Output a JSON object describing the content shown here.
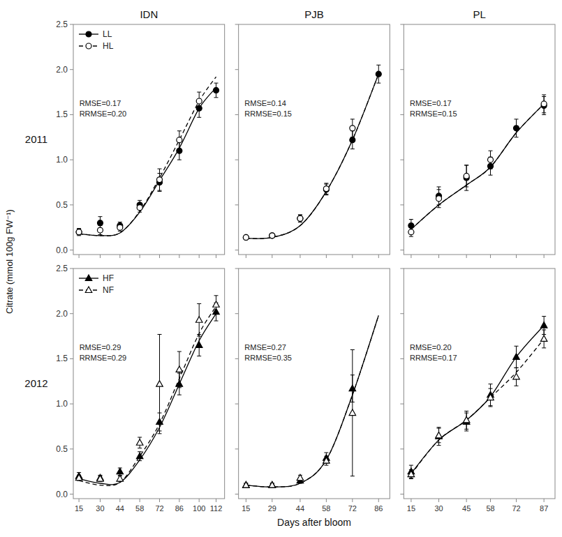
{
  "chart_data": [
    {
      "type": "line",
      "title": "IDN",
      "row_label": "2011",
      "ylabel": "Citrate (mmol 100g FW⁻¹)",
      "legend": "upper-left",
      "tick_labels": "y",
      "x": [
        15,
        30,
        44,
        58,
        72,
        86,
        100,
        112
      ],
      "xlim": [
        11,
        118
      ],
      "xticks": [
        15,
        30,
        44,
        58,
        72,
        86,
        100,
        112
      ],
      "ylim": [
        -0.05,
        2.5
      ],
      "yticks": [
        {
          "value": 0.0,
          "label": "0.0"
        },
        0.5,
        {
          "value": 1.0,
          "label": "1.0"
        },
        1.5,
        {
          "value": 2.0,
          "label": "2.0"
        },
        2.5
      ],
      "annotation": "RMSE=0.17\nRRMSE=0.20",
      "series": [
        {
          "name": "LL",
          "color": "black",
          "marker": "circle",
          "line_style": "solid",
          "values": [
            0.2,
            0.3,
            0.27,
            0.5,
            0.75,
            1.1,
            1.57,
            1.77
          ],
          "errors": [
            0.04,
            0.07,
            0.04,
            0.05,
            0.1,
            0.1,
            0.1,
            0.08
          ],
          "model_values": [
            0.18,
            0.16,
            0.19,
            0.42,
            0.77,
            1.13,
            1.57,
            1.8
          ]
        },
        {
          "name": "HL",
          "color": "black",
          "marker": "circle-open",
          "line_style": "dashed",
          "values": [
            0.2,
            0.22,
            0.25,
            0.47,
            0.78,
            1.22,
            1.65,
            null
          ],
          "errors": [
            0.03,
            0.05,
            0.04,
            0.05,
            0.12,
            0.1,
            0.1,
            null
          ],
          "model_values": [
            0.18,
            0.16,
            0.19,
            0.43,
            0.8,
            1.22,
            1.65,
            1.92
          ]
        }
      ]
    },
    {
      "type": "line",
      "title": "PJB",
      "tick_labels": false,
      "x": [
        15,
        29,
        44,
        58,
        72,
        86
      ],
      "xlim": [
        11,
        92
      ],
      "xticks": [
        15,
        29,
        44,
        58,
        72,
        86
      ],
      "ylim": [
        -0.05,
        2.5
      ],
      "yticks": [
        0.0,
        0.5,
        1.0,
        1.5,
        2.0,
        2.5
      ],
      "annotation": "RMSE=0.14\nRRMSE=0.15",
      "series": [
        {
          "color": "black",
          "marker": "circle",
          "line_style": "solid",
          "values": [
            0.14,
            0.16,
            0.35,
            0.67,
            1.22,
            1.95
          ],
          "errors": [
            0.02,
            0.02,
            0.04,
            0.06,
            0.1,
            0.1
          ],
          "model_values": [
            0.13,
            0.14,
            0.27,
            0.65,
            1.22,
            1.95
          ]
        },
        {
          "color": "black",
          "marker": "circle-open",
          "line_style": "dashed",
          "values": [
            0.14,
            0.16,
            0.35,
            0.68,
            1.35,
            null
          ],
          "errors": [
            0.02,
            0.02,
            0.04,
            0.06,
            0.1,
            null
          ],
          "model_values": [
            0.13,
            0.14,
            0.27,
            0.65,
            1.22,
            1.95
          ]
        }
      ]
    },
    {
      "type": "line",
      "title": "PL",
      "tick_labels": false,
      "x": [
        15,
        30,
        45,
        58,
        72,
        87
      ],
      "xlim": [
        11,
        93
      ],
      "xticks": [
        15,
        30,
        45,
        58,
        72,
        87
      ],
      "ylim": [
        -0.05,
        2.5
      ],
      "yticks": [
        0.0,
        0.5,
        1.0,
        1.5,
        2.0,
        2.5
      ],
      "annotation": "RMSE=0.17\nRRMSE=0.15",
      "series": [
        {
          "color": "black",
          "marker": "circle",
          "line_style": "solid",
          "values": [
            0.27,
            0.6,
            0.8,
            0.93,
            1.35,
            1.6
          ],
          "errors": [
            0.07,
            0.1,
            0.14,
            0.1,
            0.1,
            0.1
          ],
          "model_values": [
            0.23,
            0.5,
            0.72,
            0.92,
            1.3,
            1.62
          ]
        },
        {
          "color": "black",
          "marker": "circle-open",
          "line_style": "dashed",
          "values": [
            0.2,
            0.57,
            0.82,
            1.0,
            null,
            1.62
          ],
          "errors": [
            0.05,
            0.1,
            0.12,
            0.1,
            null,
            0.1
          ],
          "model_values": [
            0.23,
            0.5,
            0.72,
            0.92,
            1.3,
            1.62
          ]
        }
      ]
    },
    {
      "type": "line",
      "row_label": "2012",
      "legend": "upper-left",
      "x": [
        15,
        30,
        44,
        58,
        72,
        86,
        100,
        112
      ],
      "xlim": [
        11,
        118
      ],
      "xticks": [
        15,
        30,
        44,
        58,
        72,
        86,
        100,
        112
      ],
      "ylim": [
        -0.05,
        2.5
      ],
      "yticks": [
        {
          "value": 0.0,
          "label": "0.0"
        },
        0.5,
        {
          "value": 1.0,
          "label": "1.0"
        },
        1.5,
        {
          "value": 2.0,
          "label": "2.0"
        },
        2.5
      ],
      "annotation": "RMSE=0.29\nRRMSE=0.29",
      "series": [
        {
          "name": "HF",
          "color": "black",
          "marker": "triangle",
          "line_style": "solid",
          "values": [
            0.2,
            0.18,
            0.25,
            0.42,
            0.8,
            1.22,
            1.65,
            2.02
          ],
          "errors": [
            0.04,
            0.03,
            0.04,
            0.05,
            0.1,
            0.12,
            0.12,
            0.1
          ],
          "model_values": [
            0.17,
            0.12,
            0.13,
            0.38,
            0.74,
            1.22,
            1.7,
            2.0
          ]
        },
        {
          "name": "NF",
          "color": "black",
          "marker": "triangle-open",
          "line_style": "dashed",
          "values": [
            0.18,
            0.17,
            0.17,
            0.57,
            1.22,
            1.38,
            1.93,
            2.1
          ],
          "errors": [
            0.03,
            0.03,
            0.03,
            0.06,
            0.55,
            0.2,
            0.18,
            0.1
          ],
          "model_values": [
            0.15,
            0.1,
            0.13,
            0.42,
            0.78,
            1.28,
            1.78,
            2.08
          ]
        }
      ]
    },
    {
      "type": "line",
      "xlabel": "Days after bloom",
      "tick_labels": "x",
      "x": [
        15,
        29,
        44,
        58,
        72,
        86
      ],
      "xlim": [
        11,
        92
      ],
      "xticks": [
        15,
        29,
        44,
        58,
        72,
        86
      ],
      "ylim": [
        -0.05,
        2.5
      ],
      "yticks": [
        0.0,
        0.5,
        1.0,
        1.5,
        2.0,
        2.5
      ],
      "annotation": "RMSE=0.27\nRRMSE=0.35",
      "series": [
        {
          "color": "black",
          "marker": "triangle",
          "line_style": "solid",
          "values": [
            0.1,
            0.1,
            0.15,
            0.4,
            1.17,
            null
          ],
          "errors": [
            0.02,
            0.02,
            0.03,
            0.06,
            0.15,
            null
          ],
          "model_values": [
            0.1,
            0.08,
            0.12,
            0.38,
            1.1,
            1.98
          ]
        },
        {
          "color": "black",
          "marker": "triangle-open",
          "line_style": "dashed",
          "values": [
            0.1,
            0.1,
            0.18,
            0.37,
            0.9,
            null
          ],
          "errors": [
            0.02,
            0.02,
            0.03,
            0.05,
            0.7,
            null
          ],
          "model_values": [
            0.1,
            0.08,
            0.12,
            0.38,
            1.1,
            1.98
          ]
        }
      ]
    },
    {
      "type": "line",
      "tick_labels": "x",
      "x": [
        15,
        30,
        45,
        58,
        72,
        87
      ],
      "xlim": [
        11,
        93
      ],
      "xticks": [
        15,
        30,
        45,
        58,
        72,
        87
      ],
      "ylim": [
        -0.05,
        2.5
      ],
      "yticks": [
        0.0,
        0.5,
        1.0,
        1.5,
        2.0,
        2.5
      ],
      "annotation": "RMSE=0.20\nRRMSE=0.17",
      "series": [
        {
          "color": "black",
          "marker": "triangle",
          "line_style": "solid",
          "values": [
            0.25,
            0.64,
            0.8,
            1.1,
            1.52,
            1.87
          ],
          "errors": [
            0.07,
            0.1,
            0.1,
            0.12,
            0.12,
            0.1
          ],
          "model_values": [
            0.23,
            0.6,
            0.82,
            1.08,
            1.52,
            1.87
          ]
        },
        {
          "color": "black",
          "marker": "triangle-open",
          "line_style": "dashed",
          "values": [
            0.22,
            0.65,
            0.82,
            1.07,
            1.3,
            1.72
          ],
          "errors": [
            0.05,
            0.08,
            0.1,
            0.1,
            0.1,
            0.1
          ],
          "model_values": [
            0.22,
            0.6,
            0.82,
            1.07,
            1.35,
            1.72
          ]
        }
      ]
    }
  ]
}
